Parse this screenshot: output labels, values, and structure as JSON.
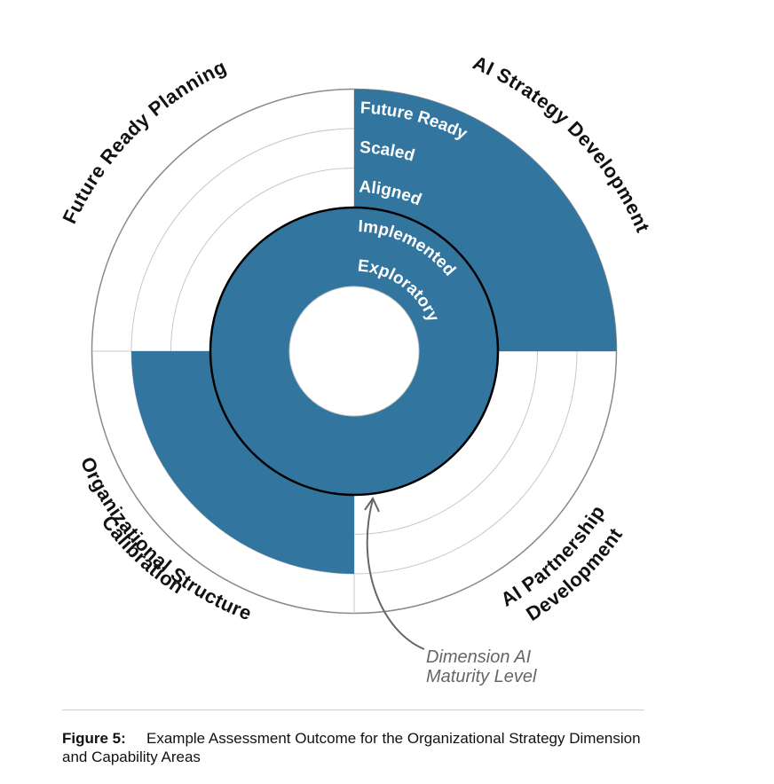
{
  "diagram": {
    "levels": [
      "Exploratory",
      "Implemented",
      "Aligned",
      "Scaled",
      "Future Ready"
    ],
    "areas": {
      "top_right": "AI Strategy Development",
      "top_left": "Future Ready Planning",
      "bottom_left_line1": "Organizational Structure",
      "bottom_left_line2": "Calibration",
      "bottom_right_line1": "AI Partnership",
      "bottom_right_line2": "Development"
    },
    "area_levels": {
      "AI Strategy Development": 5,
      "Future Ready Planning": 2,
      "Organizational Structure Calibration": 4,
      "AI Partnership Development": 2
    },
    "dimension_level": 2,
    "annotation_line1": "Dimension AI",
    "annotation_line2": "Maturity Level",
    "colors": {
      "fill": "#32769f",
      "grid": "#c8c8c8",
      "outline": "#000000",
      "annotation": "#666666"
    }
  },
  "caption": {
    "label": "Figure 5:",
    "text": "Example Assessment Outcome for the Organizational Strategy Dimension and Capability Areas"
  }
}
